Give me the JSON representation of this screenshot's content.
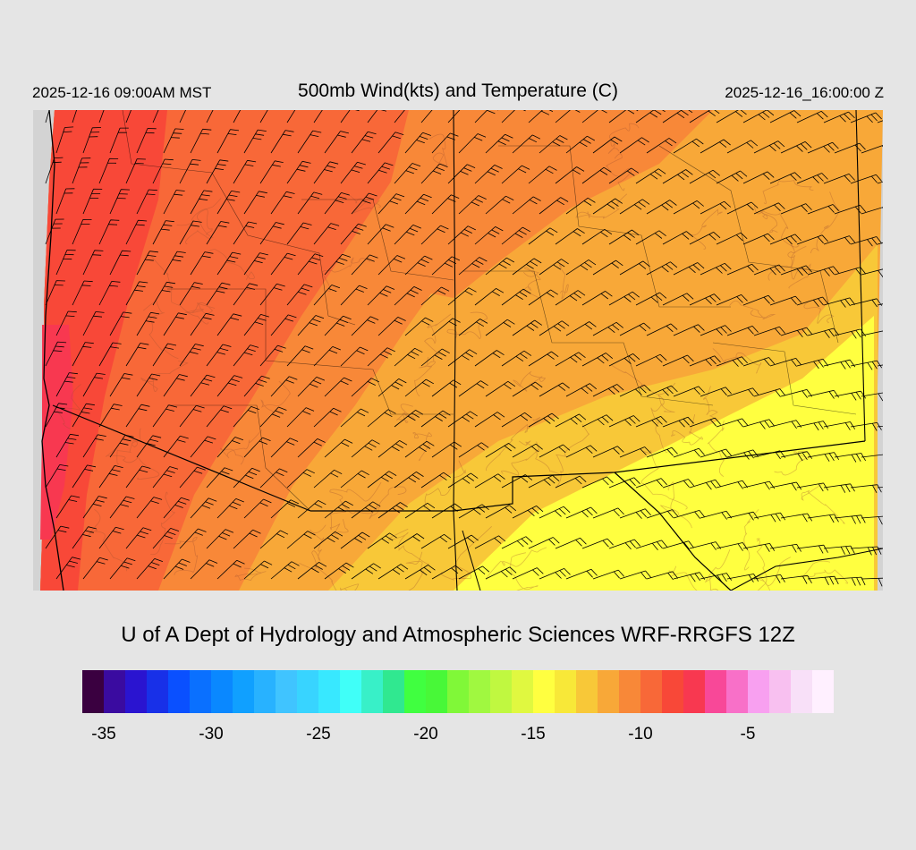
{
  "header": {
    "valid_local": "2025-12-16 09:00AM MST",
    "title": "500mb Wind(kts) and Temperature (C)",
    "valid_utc": "2025-12-16_16:00:00 Z"
  },
  "footer": {
    "credit": "U of A Dept of Hydrology and Atmospheric Sciences WRF-RRGFS 12Z"
  },
  "colorbar": {
    "unit": "C",
    "min": -36,
    "max": -1,
    "colors": [
      "#3a0040",
      "#3a0ba0",
      "#2a14d0",
      "#1830e8",
      "#0a50ff",
      "#0a70ff",
      "#0a88ff",
      "#10a0ff",
      "#28b2ff",
      "#40c4ff",
      "#38d4ff",
      "#38e8ff",
      "#40fff8",
      "#38f0c8",
      "#30e890",
      "#40ff40",
      "#48f838",
      "#80f838",
      "#a0f840",
      "#c0f840",
      "#e0f840",
      "#ffff40",
      "#f8e838",
      "#f8c838",
      "#f8a838",
      "#f88838",
      "#f86838",
      "#f84838",
      "#f83850",
      "#f84898",
      "#f870c8",
      "#f8a0f0",
      "#f8c0f0",
      "#f8e0f8",
      "#fff0ff"
    ],
    "ticks": [
      {
        "value": -35,
        "label": "-35"
      },
      {
        "value": -30,
        "label": "-30"
      },
      {
        "value": -25,
        "label": "-25"
      },
      {
        "value": -20,
        "label": "-20"
      },
      {
        "value": -15,
        "label": "-15"
      },
      {
        "value": -10,
        "label": "-10"
      },
      {
        "value": -5,
        "label": "-5"
      }
    ]
  },
  "map": {
    "background_color": "#d3d3d3",
    "border_color": "#000000",
    "field_colors": {
      "coldest": "#f83850",
      "cold": "#f84838",
      "cool": "#f86838",
      "mid": "#f88838",
      "warm": "#f8a838",
      "warmer": "#f8c838",
      "warmest": "#ffff40"
    }
  }
}
